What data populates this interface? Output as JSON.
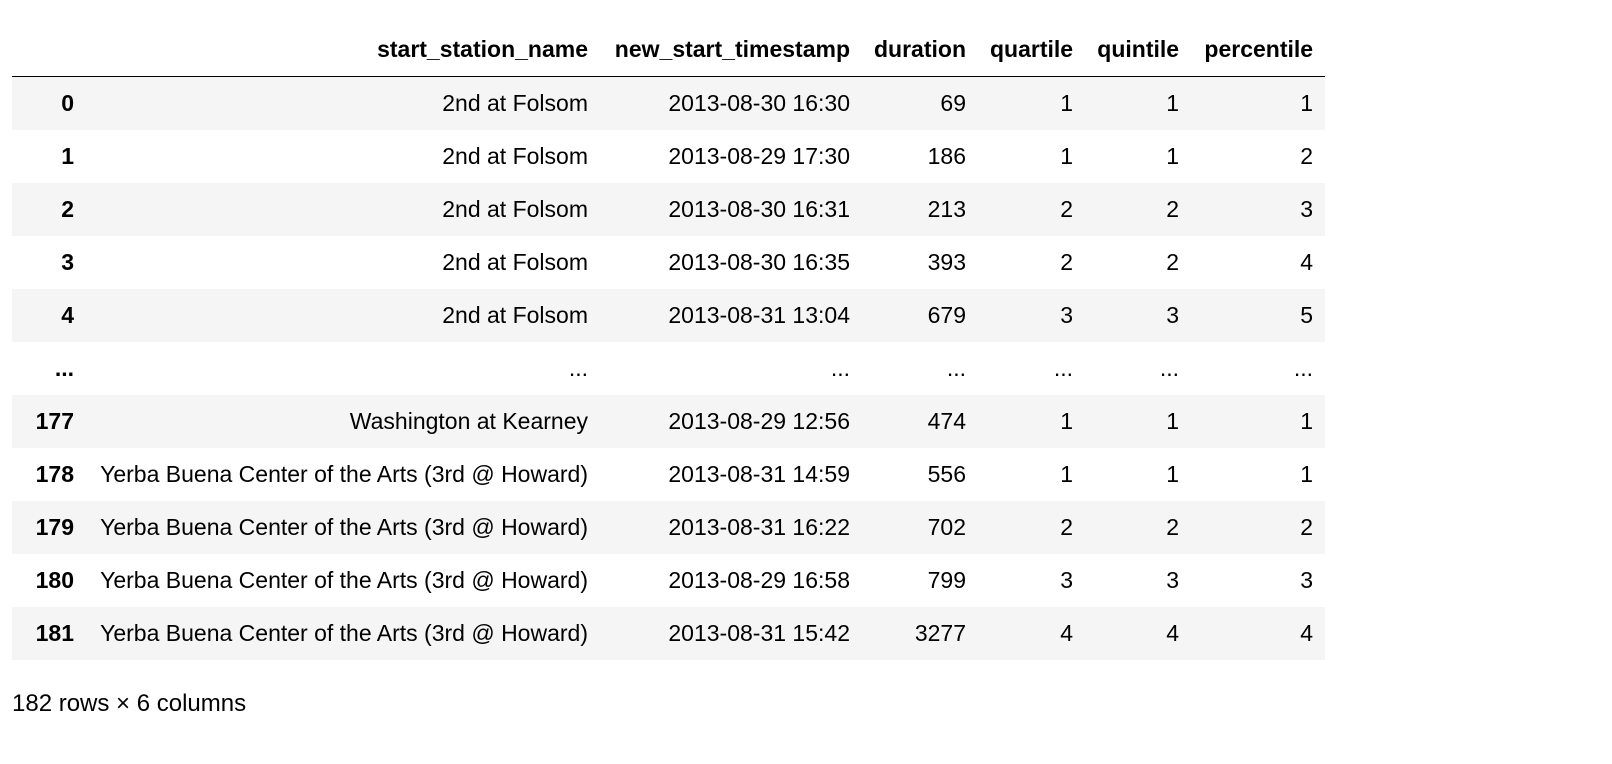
{
  "table": {
    "index_header": "",
    "columns": [
      "start_station_name",
      "new_start_timestamp",
      "duration",
      "quartile",
      "quintile",
      "percentile"
    ],
    "rows": [
      {
        "index": "0",
        "cells": [
          "2nd at Folsom",
          "2013-08-30 16:30",
          "69",
          "1",
          "1",
          "1"
        ]
      },
      {
        "index": "1",
        "cells": [
          "2nd at Folsom",
          "2013-08-29 17:30",
          "186",
          "1",
          "1",
          "2"
        ]
      },
      {
        "index": "2",
        "cells": [
          "2nd at Folsom",
          "2013-08-30 16:31",
          "213",
          "2",
          "2",
          "3"
        ]
      },
      {
        "index": "3",
        "cells": [
          "2nd at Folsom",
          "2013-08-30 16:35",
          "393",
          "2",
          "2",
          "4"
        ]
      },
      {
        "index": "4",
        "cells": [
          "2nd at Folsom",
          "2013-08-31 13:04",
          "679",
          "3",
          "3",
          "5"
        ]
      },
      {
        "index": "...",
        "cells": [
          "...",
          "...",
          "...",
          "...",
          "...",
          "..."
        ]
      },
      {
        "index": "177",
        "cells": [
          "Washington at Kearney",
          "2013-08-29 12:56",
          "474",
          "1",
          "1",
          "1"
        ]
      },
      {
        "index": "178",
        "cells": [
          "Yerba Buena Center of the Arts (3rd @ Howard)",
          "2013-08-31 14:59",
          "556",
          "1",
          "1",
          "1"
        ]
      },
      {
        "index": "179",
        "cells": [
          "Yerba Buena Center of the Arts (3rd @ Howard)",
          "2013-08-31 16:22",
          "702",
          "2",
          "2",
          "2"
        ]
      },
      {
        "index": "180",
        "cells": [
          "Yerba Buena Center of the Arts (3rd @ Howard)",
          "2013-08-29 16:58",
          "799",
          "3",
          "3",
          "3"
        ]
      },
      {
        "index": "181",
        "cells": [
          "Yerba Buena Center of the Arts (3rd @ Howard)",
          "2013-08-31 15:42",
          "3277",
          "4",
          "4",
          "4"
        ]
      }
    ]
  },
  "footer": {
    "shape_text": "182 rows × 6 columns"
  }
}
